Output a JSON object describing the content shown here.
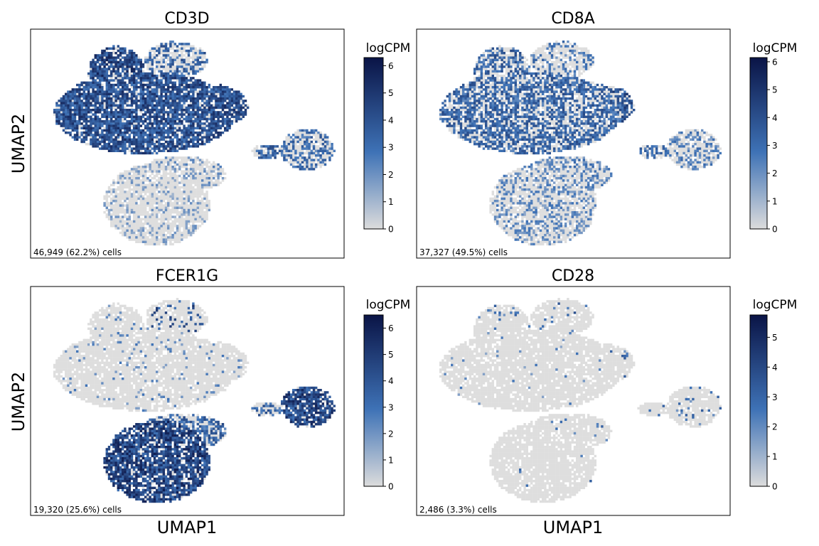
{
  "figure": {
    "ylabel_top": "UMAP2",
    "ylabel_bottom": "UMAP2",
    "xlabel_left": "UMAP1",
    "xlabel_right": "UMAP1"
  },
  "colormap": {
    "low": "#dcdcdc",
    "mid": "#3e72b6",
    "high": "#0a1446"
  },
  "chart_data": [
    {
      "type": "scatter",
      "title": "CD3D",
      "colorbar_label": "logCPM",
      "colorbar_ticks": [
        "0",
        "1",
        "2",
        "3",
        "4",
        "5",
        "6"
      ],
      "colorbar_max": 6.3,
      "cell_count_label": "46,949 (62.2%) cells",
      "xlabel": "",
      "ylabel": "UMAP2",
      "pattern": "cd3d",
      "grid": false
    },
    {
      "type": "scatter",
      "title": "CD8A",
      "colorbar_label": "logCPM",
      "colorbar_ticks": [
        "0",
        "1",
        "2",
        "3",
        "4",
        "5",
        "6"
      ],
      "colorbar_max": 6.15,
      "cell_count_label": "37,327 (49.5%) cells",
      "xlabel": "",
      "ylabel": "",
      "pattern": "cd8a",
      "grid": false
    },
    {
      "type": "scatter",
      "title": "FCER1G",
      "colorbar_label": "logCPM",
      "colorbar_ticks": [
        "0",
        "1",
        "2",
        "3",
        "4",
        "5",
        "6"
      ],
      "colorbar_max": 6.5,
      "cell_count_label": "19,320 (25.6%) cells",
      "xlabel": "UMAP1",
      "ylabel": "UMAP2",
      "pattern": "fcer1g",
      "grid": false
    },
    {
      "type": "scatter",
      "title": "CD28",
      "colorbar_label": "logCPM",
      "colorbar_ticks": [
        "0",
        "1",
        "2",
        "3",
        "4",
        "5"
      ],
      "colorbar_max": 5.75,
      "cell_count_label": "2,486 (3.3%) cells",
      "xlabel": "UMAP1",
      "ylabel": "",
      "pattern": "cd28",
      "grid": false
    }
  ]
}
